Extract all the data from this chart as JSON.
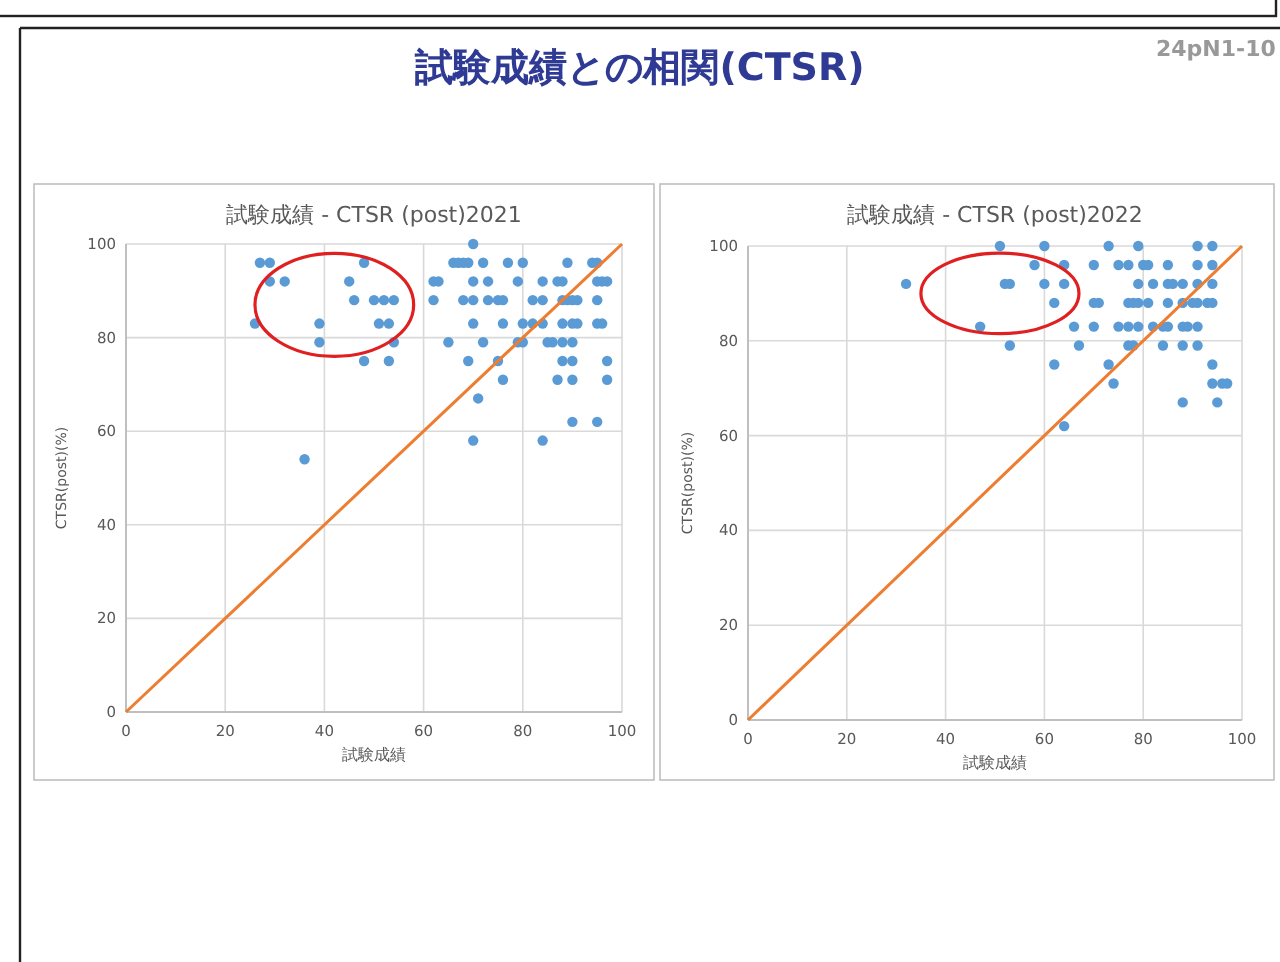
{
  "chart_data": [
    {
      "type": "scatter",
      "title": "試験成績 - CTSR (post)2021",
      "xlabel": "試験成績",
      "ylabel": "CTSR(post)(%)",
      "xlim": [
        0,
        100
      ],
      "ylim": [
        0,
        100
      ],
      "xticks": [
        0,
        20,
        40,
        60,
        80,
        100
      ],
      "yticks": [
        0,
        20,
        40,
        60,
        80,
        100
      ],
      "grid": true,
      "marker": "circle",
      "annotations": [
        "試験成績との相関(CTSR)",
        "24pN1-10"
      ],
      "series": [
        {
          "type": "scatter",
          "color": "#5b9bd5",
          "x": [
            70,
            27,
            29,
            48,
            66,
            67,
            68,
            69,
            72,
            77,
            80,
            89,
            94,
            95,
            29,
            32,
            45,
            62,
            63,
            70,
            73,
            79,
            84,
            87,
            88,
            95,
            96,
            97,
            46,
            50,
            52,
            54,
            62,
            68,
            70,
            73,
            75,
            76,
            82,
            84,
            88,
            89,
            90,
            91,
            95,
            26,
            39,
            51,
            53,
            70,
            76,
            80,
            82,
            84,
            88,
            90,
            91,
            95,
            96,
            39,
            54,
            65,
            72,
            79,
            80,
            85,
            86,
            88,
            90,
            48,
            53,
            69,
            75,
            88,
            90,
            97,
            76,
            87,
            90,
            97,
            71,
            90,
            95,
            70,
            84,
            36
          ],
          "values": [
            100,
            96,
            96,
            96,
            96,
            96,
            96,
            96,
            96,
            96,
            96,
            96,
            96,
            96,
            92,
            92,
            92,
            92,
            92,
            92,
            92,
            92,
            92,
            92,
            92,
            92,
            92,
            92,
            88,
            88,
            88,
            88,
            88,
            88,
            88,
            88,
            88,
            88,
            88,
            88,
            88,
            88,
            88,
            88,
            88,
            83,
            83,
            83,
            83,
            83,
            83,
            83,
            83,
            83,
            83,
            83,
            83,
            83,
            83,
            79,
            79,
            79,
            79,
            79,
            79,
            79,
            79,
            79,
            79,
            75,
            75,
            75,
            75,
            75,
            75,
            75,
            71,
            71,
            71,
            71,
            67,
            62,
            62,
            58,
            58,
            54
          ]
        },
        {
          "type": "line",
          "color": "#ed7d31",
          "marker": "none",
          "x": [
            0,
            100
          ],
          "values": [
            0,
            100
          ]
        }
      ]
    },
    {
      "type": "scatter",
      "title": "試験成績 - CTSR (post)2022",
      "xlabel": "試験成績",
      "ylabel": "CTSR(post)(%)",
      "xlim": [
        0,
        100
      ],
      "ylim": [
        0,
        100
      ],
      "xticks": [
        0,
        20,
        40,
        60,
        80,
        100
      ],
      "yticks": [
        0,
        20,
        40,
        60,
        80,
        100
      ],
      "grid": true,
      "marker": "circle",
      "series": [
        {
          "type": "scatter",
          "color": "#5b9bd5",
          "x": [
            51,
            60,
            73,
            79,
            91,
            94,
            58,
            64,
            70,
            75,
            77,
            80,
            81,
            85,
            91,
            94,
            32,
            52,
            53,
            60,
            64,
            79,
            82,
            85,
            86,
            88,
            91,
            94,
            62,
            70,
            71,
            77,
            78,
            79,
            81,
            85,
            88,
            90,
            91,
            93,
            94,
            47,
            66,
            70,
            75,
            77,
            79,
            82,
            84,
            85,
            88,
            89,
            91,
            53,
            67,
            77,
            78,
            84,
            88,
            91,
            62,
            73,
            94,
            74,
            94,
            96,
            97,
            88,
            95,
            64
          ],
          "values": [
            100,
            100,
            100,
            100,
            100,
            100,
            96,
            96,
            96,
            96,
            96,
            96,
            96,
            96,
            96,
            96,
            92,
            92,
            92,
            92,
            92,
            92,
            92,
            92,
            92,
            92,
            92,
            92,
            88,
            88,
            88,
            88,
            88,
            88,
            88,
            88,
            88,
            88,
            88,
            88,
            88,
            83,
            83,
            83,
            83,
            83,
            83,
            83,
            83,
            83,
            83,
            83,
            83,
            79,
            79,
            79,
            79,
            79,
            79,
            79,
            75,
            75,
            75,
            71,
            71,
            71,
            71,
            67,
            67,
            62
          ]
        },
        {
          "type": "line",
          "color": "#ed7d31",
          "marker": "none",
          "x": [
            0,
            100
          ],
          "values": [
            0,
            100
          ]
        }
      ]
    }
  ]
}
